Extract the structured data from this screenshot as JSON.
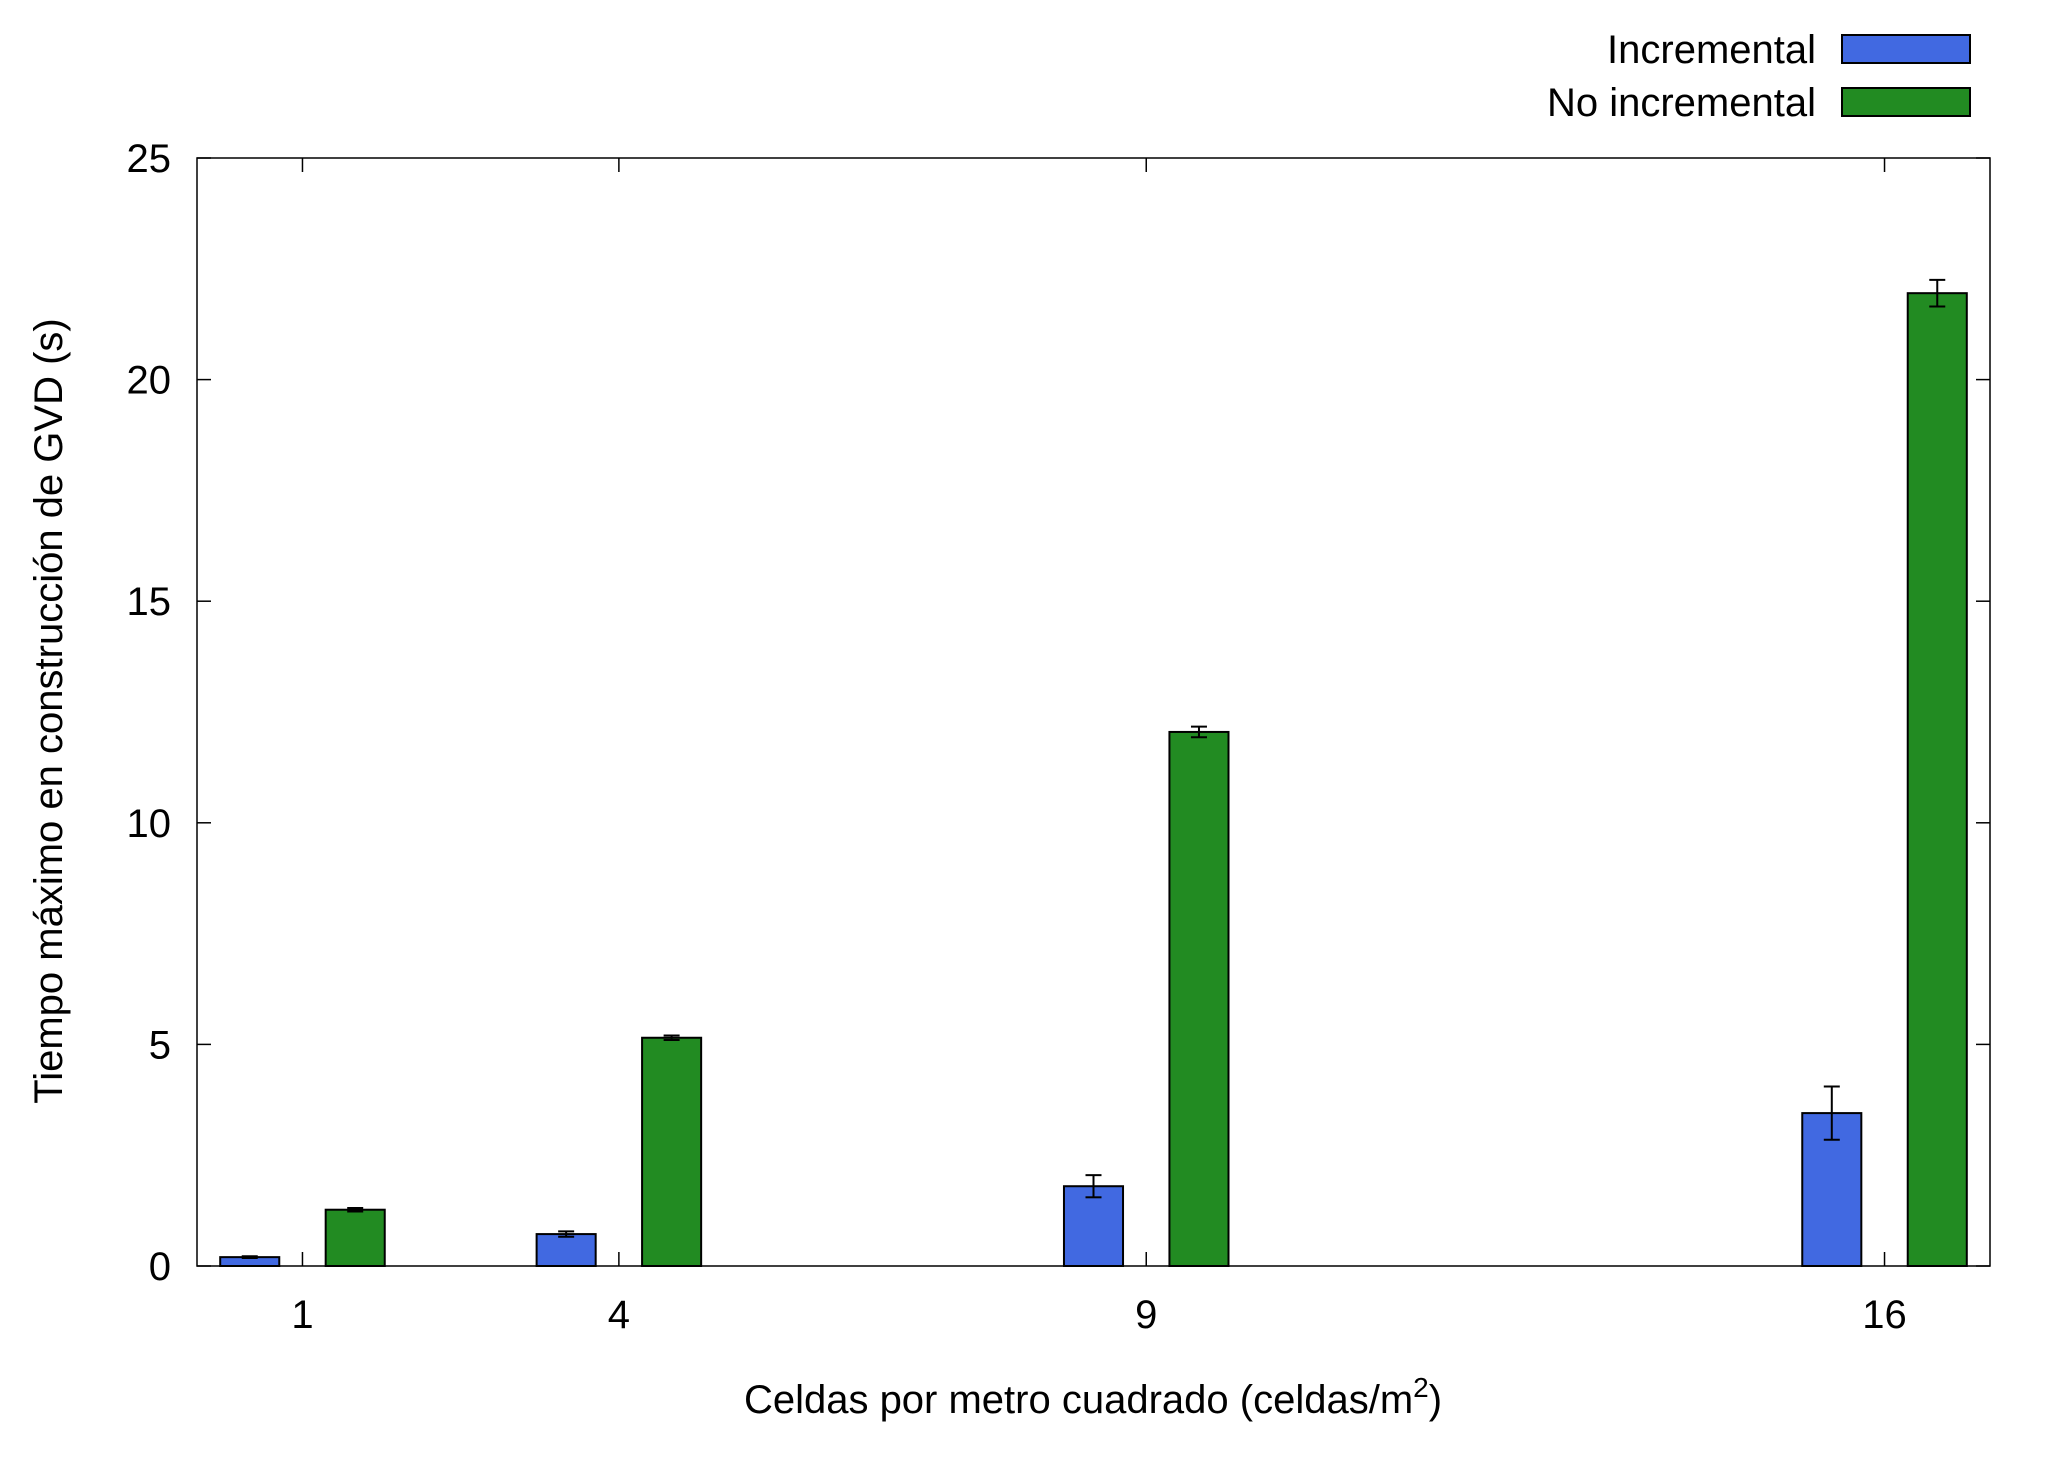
{
  "chart_data": {
    "type": "bar",
    "xlabel": "Celdas por metro cuadrado (celdas/m",
    "xlabel_superscript": "2",
    "xlabel_suffix": ")",
    "ylabel": "Tiempo máximo en construcción de GVD (s)",
    "xlim": [
      0,
      17
    ],
    "ylim": [
      0,
      25
    ],
    "x_ticks": [
      1,
      4,
      9,
      16
    ],
    "y_ticks": [
      0,
      5,
      10,
      15,
      20,
      25
    ],
    "grid": false,
    "legend_position": "top-right",
    "series": [
      {
        "name": "Incremental",
        "color": "#4169e1",
        "offset": -0.5,
        "x": [
          1,
          4,
          9,
          16
        ],
        "values": [
          0.2,
          0.72,
          1.8,
          3.45
        ],
        "errors": [
          0.02,
          0.06,
          0.25,
          0.6
        ]
      },
      {
        "name": "No incremental",
        "color": "#228b22",
        "offset": 0.5,
        "x": [
          1,
          4,
          9,
          16
        ],
        "values": [
          1.27,
          5.15,
          12.05,
          21.95
        ],
        "errors": [
          0.04,
          0.05,
          0.12,
          0.3
        ]
      }
    ]
  }
}
